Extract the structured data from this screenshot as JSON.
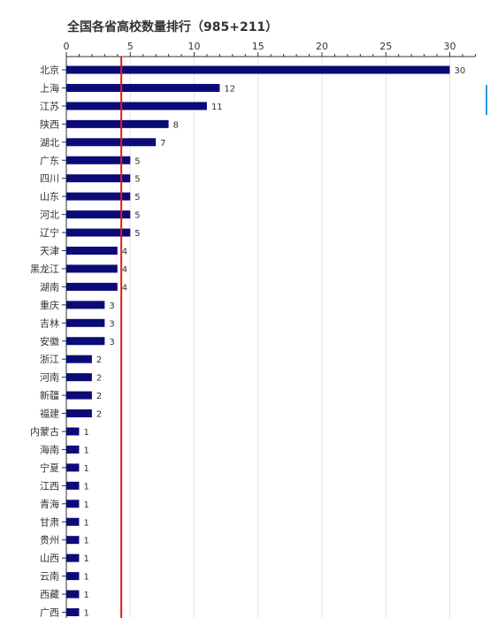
{
  "chart_data": {
    "type": "bar",
    "orientation": "horizontal",
    "title": "全国各省高校数量排行（985+211）",
    "xlabel": "",
    "ylabel": "",
    "xlim": [
      0,
      32
    ],
    "x_ticks": [
      "0",
      "5",
      "10",
      "15",
      "20",
      "25",
      "30"
    ],
    "categories": [
      "北京",
      "上海",
      "江苏",
      "陕西",
      "湖北",
      "广东",
      "四川",
      "山东",
      "河北",
      "辽宁",
      "天津",
      "黑龙江",
      "湖南",
      "重庆",
      "吉林",
      "安徽",
      "浙江",
      "河南",
      "新疆",
      "福建",
      "内蒙古",
      "海南",
      "宁夏",
      "江西",
      "青海",
      "甘肃",
      "贵州",
      "山西",
      "云南",
      "西藏",
      "广西"
    ],
    "values": [
      30,
      12,
      11,
      8,
      7,
      5,
      5,
      5,
      5,
      5,
      4,
      4,
      4,
      3,
      3,
      3,
      2,
      2,
      2,
      2,
      1,
      1,
      1,
      1,
      1,
      1,
      1,
      1,
      1,
      1,
      1
    ],
    "reference_line": {
      "value": 4.3,
      "color": "#e8191e"
    },
    "bar_color": "#0b0b78",
    "grid": true,
    "legend": "none"
  }
}
